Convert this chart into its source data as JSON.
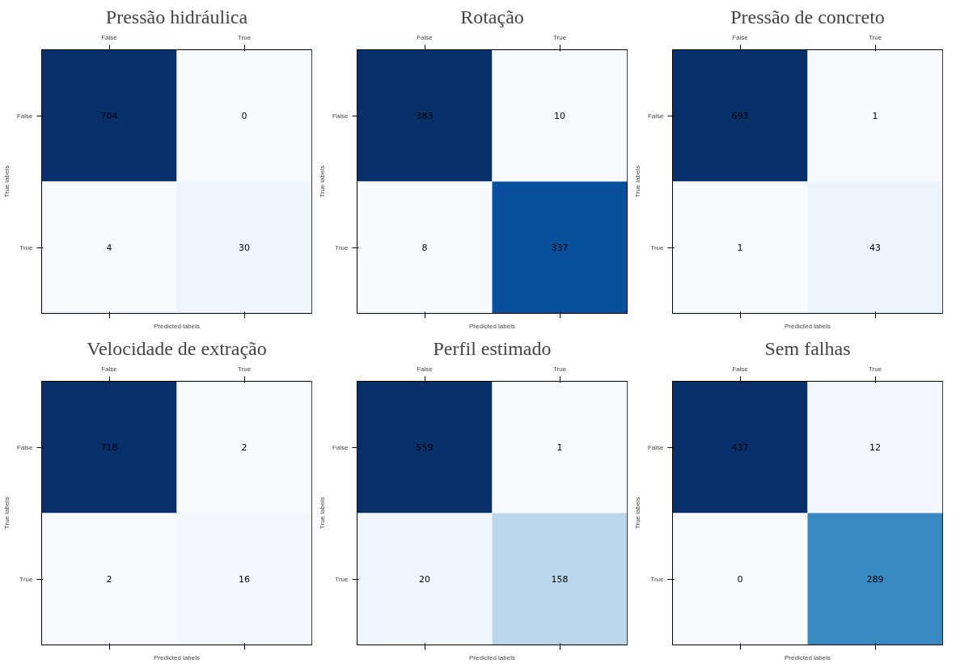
{
  "chart_data": [
    {
      "type": "heatmap",
      "title": "Pressão hidráulica",
      "categories": [
        "False",
        "True"
      ],
      "y_categories": [
        "False",
        "True"
      ],
      "cells": [
        [
          704,
          0
        ],
        [
          4,
          30
        ]
      ],
      "xlabel": "Predicted labels",
      "ylabel": "True labels",
      "data_labels": true
    },
    {
      "type": "heatmap",
      "title": "Rotação",
      "categories": [
        "False",
        "True"
      ],
      "y_categories": [
        "False",
        "True"
      ],
      "cells": [
        [
          383,
          10
        ],
        [
          8,
          337
        ]
      ],
      "xlabel": "Predicted labels",
      "ylabel": "True labels",
      "data_labels": true
    },
    {
      "type": "heatmap",
      "title": "Pressão de concreto",
      "categories": [
        "False",
        "True"
      ],
      "y_categories": [
        "False",
        "True"
      ],
      "cells": [
        [
          693,
          1
        ],
        [
          1,
          43
        ]
      ],
      "xlabel": "Predicted labels",
      "ylabel": "True labels",
      "data_labels": true
    },
    {
      "type": "heatmap",
      "title": "Velocidade de extração",
      "categories": [
        "False",
        "True"
      ],
      "y_categories": [
        "False",
        "True"
      ],
      "cells": [
        [
          718,
          2
        ],
        [
          2,
          16
        ]
      ],
      "xlabel": "Predicted labels",
      "ylabel": "True labels",
      "data_labels": true
    },
    {
      "type": "heatmap",
      "title": "Perfil estimado",
      "categories": [
        "False",
        "True"
      ],
      "y_categories": [
        "False",
        "True"
      ],
      "cells": [
        [
          559,
          1
        ],
        [
          20,
          158
        ]
      ],
      "xlabel": "Predicted labels",
      "ylabel": "True labels",
      "data_labels": true
    },
    {
      "type": "heatmap",
      "title": "Sem falhas",
      "categories": [
        "False",
        "True"
      ],
      "y_categories": [
        "False",
        "True"
      ],
      "cells": [
        [
          437,
          12
        ],
        [
          0,
          289
        ]
      ],
      "xlabel": "Predicted labels",
      "ylabel": "True labels",
      "data_labels": true
    }
  ]
}
